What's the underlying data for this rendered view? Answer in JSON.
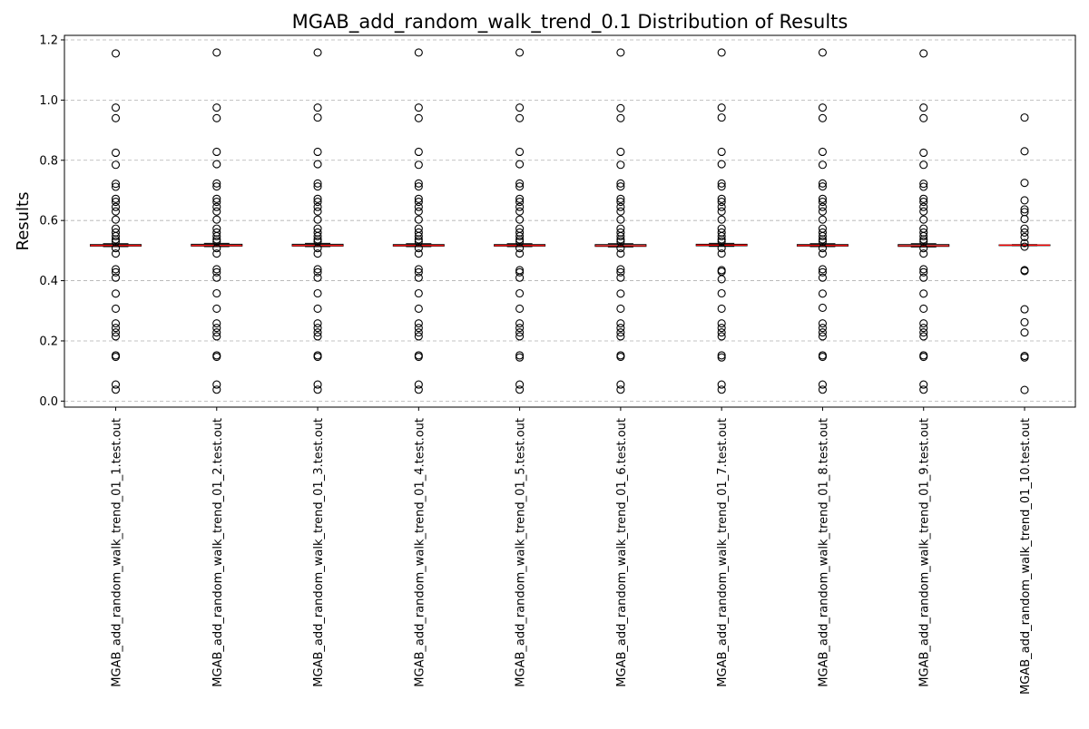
{
  "chart_data": {
    "type": "box",
    "title": "MGAB_add_random_walk_trend_0.1 Distribution of Results",
    "xlabel": "",
    "ylabel": "Results",
    "ylim": [
      -0.02,
      1.215
    ],
    "yticks": [
      0.0,
      0.2,
      0.4,
      0.6,
      0.8,
      1.0,
      1.2
    ],
    "ytick_labels": [
      "0.0",
      "0.2",
      "0.4",
      "0.6",
      "0.8",
      "1.0",
      "1.2"
    ],
    "grid": "y-dashed",
    "median_color": "#ff0000",
    "categories": [
      "MGAB_add_random_walk_trend_01_1.test.out",
      "MGAB_add_random_walk_trend_01_2.test.out",
      "MGAB_add_random_walk_trend_01_3.test.out",
      "MGAB_add_random_walk_trend_01_4.test.out",
      "MGAB_add_random_walk_trend_01_5.test.out",
      "MGAB_add_random_walk_trend_01_6.test.out",
      "MGAB_add_random_walk_trend_01_7.test.out",
      "MGAB_add_random_walk_trend_01_8.test.out",
      "MGAB_add_random_walk_trend_01_9.test.out",
      "MGAB_add_random_walk_trend_01_10.test.out"
    ],
    "series": [
      {
        "median": 0.517,
        "q1": 0.515,
        "q3": 0.52,
        "whisker_low": 0.513,
        "whisker_high": 0.523,
        "outliers": [
          1.155,
          0.975,
          0.94,
          0.825,
          0.785,
          0.722,
          0.712,
          0.672,
          0.662,
          0.645,
          0.63,
          0.603,
          0.573,
          0.56,
          0.548,
          0.537,
          0.53,
          0.508,
          0.49,
          0.438,
          0.428,
          0.41,
          0.357,
          0.307,
          0.258,
          0.243,
          0.228,
          0.215,
          0.152,
          0.147,
          0.055,
          0.038
        ]
      },
      {
        "median": 0.517,
        "q1": 0.515,
        "q3": 0.521,
        "whisker_low": 0.513,
        "whisker_high": 0.524,
        "outliers": [
          1.158,
          0.975,
          0.94,
          0.828,
          0.787,
          0.723,
          0.713,
          0.672,
          0.662,
          0.645,
          0.63,
          0.603,
          0.573,
          0.56,
          0.548,
          0.537,
          0.53,
          0.508,
          0.49,
          0.438,
          0.428,
          0.41,
          0.358,
          0.307,
          0.258,
          0.243,
          0.228,
          0.215,
          0.152,
          0.147,
          0.055,
          0.038
        ]
      },
      {
        "median": 0.517,
        "q1": 0.515,
        "q3": 0.521,
        "whisker_low": 0.513,
        "whisker_high": 0.524,
        "outliers": [
          1.158,
          0.975,
          0.942,
          0.828,
          0.787,
          0.723,
          0.713,
          0.672,
          0.662,
          0.645,
          0.63,
          0.603,
          0.573,
          0.56,
          0.548,
          0.537,
          0.53,
          0.508,
          0.49,
          0.438,
          0.428,
          0.41,
          0.358,
          0.307,
          0.258,
          0.243,
          0.228,
          0.215,
          0.152,
          0.147,
          0.055,
          0.038
        ]
      },
      {
        "median": 0.517,
        "q1": 0.515,
        "q3": 0.52,
        "whisker_low": 0.513,
        "whisker_high": 0.523,
        "outliers": [
          1.158,
          0.975,
          0.94,
          0.828,
          0.785,
          0.723,
          0.713,
          0.672,
          0.662,
          0.645,
          0.63,
          0.603,
          0.573,
          0.56,
          0.548,
          0.537,
          0.53,
          0.508,
          0.49,
          0.438,
          0.428,
          0.41,
          0.358,
          0.307,
          0.258,
          0.243,
          0.228,
          0.215,
          0.152,
          0.147,
          0.055,
          0.038
        ]
      },
      {
        "median": 0.517,
        "q1": 0.515,
        "q3": 0.52,
        "whisker_low": 0.513,
        "whisker_high": 0.523,
        "outliers": [
          1.158,
          0.975,
          0.94,
          0.828,
          0.787,
          0.723,
          0.713,
          0.672,
          0.662,
          0.645,
          0.63,
          0.603,
          0.573,
          0.56,
          0.548,
          0.537,
          0.53,
          0.508,
          0.49,
          0.435,
          0.428,
          0.41,
          0.358,
          0.307,
          0.258,
          0.243,
          0.228,
          0.215,
          0.152,
          0.145,
          0.055,
          0.038
        ]
      },
      {
        "median": 0.516,
        "q1": 0.514,
        "q3": 0.52,
        "whisker_low": 0.512,
        "whisker_high": 0.523,
        "outliers": [
          1.158,
          0.973,
          0.94,
          0.828,
          0.785,
          0.723,
          0.713,
          0.672,
          0.662,
          0.645,
          0.63,
          0.603,
          0.573,
          0.56,
          0.548,
          0.537,
          0.53,
          0.508,
          0.49,
          0.438,
          0.428,
          0.41,
          0.357,
          0.307,
          0.258,
          0.243,
          0.228,
          0.215,
          0.152,
          0.147,
          0.055,
          0.038
        ]
      },
      {
        "median": 0.518,
        "q1": 0.516,
        "q3": 0.521,
        "whisker_low": 0.514,
        "whisker_high": 0.524,
        "outliers": [
          1.158,
          0.975,
          0.942,
          0.828,
          0.787,
          0.723,
          0.713,
          0.672,
          0.662,
          0.645,
          0.63,
          0.603,
          0.573,
          0.56,
          0.548,
          0.537,
          0.53,
          0.508,
          0.49,
          0.435,
          0.43,
          0.405,
          0.358,
          0.307,
          0.258,
          0.243,
          0.228,
          0.215,
          0.152,
          0.145,
          0.055,
          0.038
        ]
      },
      {
        "median": 0.517,
        "q1": 0.515,
        "q3": 0.52,
        "whisker_low": 0.513,
        "whisker_high": 0.523,
        "outliers": [
          1.158,
          0.975,
          0.94,
          0.828,
          0.785,
          0.723,
          0.713,
          0.672,
          0.662,
          0.645,
          0.63,
          0.603,
          0.573,
          0.56,
          0.548,
          0.537,
          0.53,
          0.508,
          0.49,
          0.438,
          0.428,
          0.41,
          0.357,
          0.31,
          0.258,
          0.243,
          0.228,
          0.215,
          0.152,
          0.147,
          0.055,
          0.038
        ]
      },
      {
        "median": 0.516,
        "q1": 0.514,
        "q3": 0.52,
        "whisker_low": 0.512,
        "whisker_high": 0.523,
        "outliers": [
          1.155,
          0.975,
          0.94,
          0.825,
          0.785,
          0.722,
          0.712,
          0.672,
          0.662,
          0.645,
          0.63,
          0.603,
          0.573,
          0.56,
          0.548,
          0.537,
          0.53,
          0.508,
          0.49,
          0.438,
          0.428,
          0.41,
          0.357,
          0.307,
          0.258,
          0.243,
          0.228,
          0.215,
          0.152,
          0.147,
          0.055,
          0.038
        ]
      },
      {
        "median": 0.518,
        "q1": 0.517,
        "q3": 0.519,
        "whisker_low": 0.516,
        "whisker_high": 0.52,
        "outliers": [
          0.942,
          0.83,
          0.725,
          0.667,
          0.637,
          0.628,
          0.605,
          0.573,
          0.56,
          0.545,
          0.525,
          0.513,
          0.435,
          0.432,
          0.305,
          0.262,
          0.228,
          0.15,
          0.145,
          0.037
        ]
      }
    ]
  }
}
